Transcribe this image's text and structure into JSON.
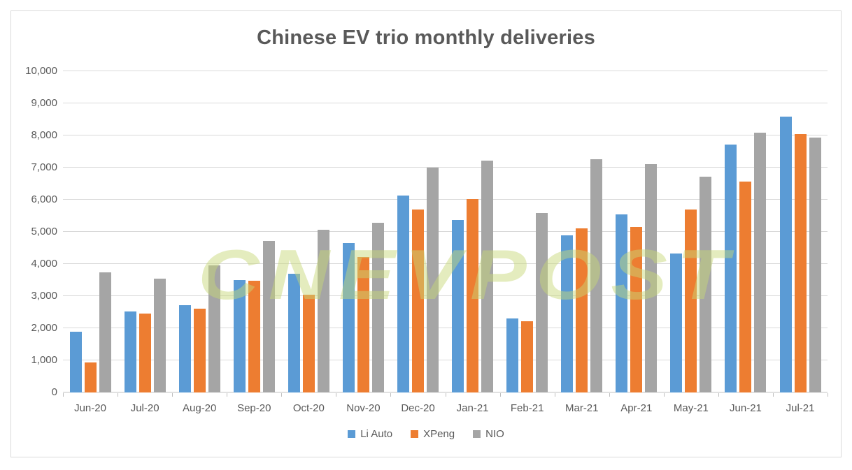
{
  "title": "Chinese EV trio monthly deliveries",
  "watermark_text": "CNEVPOST",
  "colors": {
    "title_text": "#595959",
    "axis_text": "#595959",
    "gridline": "#D9D9D9",
    "axis_line": "#BFBFBF",
    "frame_border": "#D9D9D9",
    "watermark": "#C8D778",
    "li_auto": "#5B9BD5",
    "xpeng": "#ED7D31",
    "nio": "#A5A5A5"
  },
  "chart_data": {
    "type": "bar",
    "title": "Chinese EV trio monthly deliveries",
    "categories": [
      "Jun-20",
      "Jul-20",
      "Aug-20",
      "Sep-20",
      "Oct-20",
      "Nov-20",
      "Dec-20",
      "Jan-21",
      "Feb-21",
      "Mar-21",
      "Apr-21",
      "May-21",
      "Jun-21",
      "Jul-21"
    ],
    "series": [
      {
        "name": "Li Auto",
        "color": "#5B9BD5",
        "values": [
          1891,
          2516,
          2711,
          3504,
          3692,
          4646,
          6126,
          5379,
          2300,
          4900,
          5539,
          4323,
          7713,
          8589
        ]
      },
      {
        "name": "XPeng",
        "color": "#ED7D31",
        "values": [
          930,
          2451,
          2619,
          3478,
          3040,
          4224,
          5700,
          6015,
          2223,
          5102,
          5147,
          5686,
          6565,
          8040
        ]
      },
      {
        "name": "NIO",
        "color": "#A5A5A5",
        "values": [
          3740,
          3533,
          3965,
          4708,
          5055,
          5291,
          7007,
          7225,
          5578,
          7257,
          7102,
          6711,
          8083,
          7931
        ]
      }
    ],
    "xlabel": "",
    "ylabel": "",
    "ylim": [
      0,
      10000
    ],
    "ytick_step": 1000,
    "ytick_labels": [
      "0",
      "1,000",
      "2,000",
      "3,000",
      "4,000",
      "5,000",
      "6,000",
      "7,000",
      "8,000",
      "9,000",
      "10,000"
    ],
    "grid": true,
    "legend_position": "bottom",
    "legend": [
      "Li Auto",
      "XPeng",
      "NIO"
    ]
  }
}
